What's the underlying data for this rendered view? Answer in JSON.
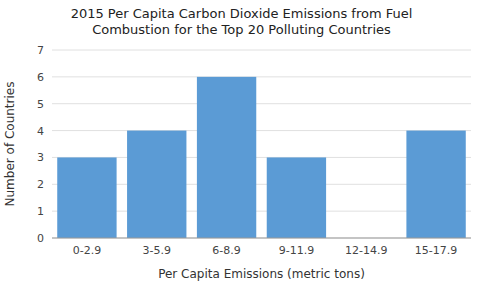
{
  "chart_data": {
    "type": "bar",
    "title": "2015 Per Capita Carbon Dioxide Emissions from Fuel\nCombustion for the Top 20 Polluting Countries",
    "x_label": "Per Capita Emissions (metric tons)",
    "y_label": "Number of Countries",
    "categories": [
      "0-2.9",
      "3-5.9",
      "6-8.9",
      "9-11.9",
      "12-14.9",
      "15-17.9"
    ],
    "values": [
      3,
      4,
      6,
      3,
      0,
      4
    ],
    "color": "#5B9BD5",
    "ylim": [
      0,
      7
    ],
    "yticks": [
      0,
      1,
      2,
      3,
      4,
      5,
      6,
      7
    ],
    "grid": true
  }
}
